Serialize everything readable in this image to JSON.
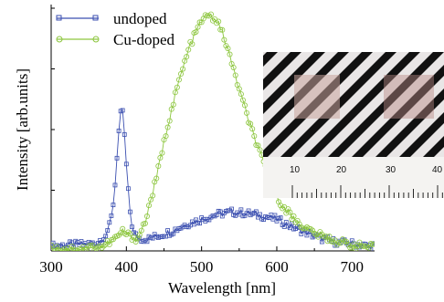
{
  "chart_data": {
    "type": "scatter",
    "title": "",
    "xlabel": "Wavelength [nm]",
    "ylabel": "Intensity [arb.units]",
    "xlim": [
      300,
      730
    ],
    "ylim": [
      0,
      1
    ],
    "x_ticks": [
      300,
      400,
      500,
      600,
      700
    ],
    "grid": false,
    "legend_position": "top-left",
    "series": [
      {
        "name": "undoped",
        "color": "#3b4fb0",
        "marker": "square",
        "x": [
          300,
          330,
          360,
          375,
          383,
          388,
          392,
          395,
          398,
          402,
          406,
          410,
          415,
          420,
          430,
          440,
          460,
          480,
          500,
          520,
          540,
          560,
          580,
          600,
          620,
          640,
          660,
          680,
          700,
          720
        ],
        "y": [
          0.02,
          0.025,
          0.03,
          0.07,
          0.2,
          0.4,
          0.56,
          0.58,
          0.45,
          0.26,
          0.13,
          0.07,
          0.055,
          0.05,
          0.05,
          0.06,
          0.08,
          0.11,
          0.13,
          0.15,
          0.16,
          0.155,
          0.145,
          0.13,
          0.1,
          0.075,
          0.05,
          0.035,
          0.03,
          0.02
        ]
      },
      {
        "name": "Cu-doped",
        "color": "#8dc63f",
        "marker": "circle",
        "x": [
          300,
          340,
          370,
          385,
          395,
          405,
          415,
          425,
          440,
          455,
          470,
          485,
          500,
          510,
          520,
          530,
          545,
          560,
          580,
          600,
          620,
          640,
          660,
          680,
          700,
          725
        ],
        "y": [
          0.01,
          0.01,
          0.02,
          0.05,
          0.08,
          0.06,
          0.05,
          0.12,
          0.3,
          0.52,
          0.7,
          0.85,
          0.95,
          0.97,
          0.95,
          0.88,
          0.72,
          0.56,
          0.38,
          0.22,
          0.14,
          0.09,
          0.06,
          0.04,
          0.025,
          0.015
        ]
      }
    ]
  },
  "inset": {
    "type": "photograph of striped sample with ruler",
    "ruler_labels": [
      "10",
      "20",
      "30",
      "40"
    ]
  }
}
